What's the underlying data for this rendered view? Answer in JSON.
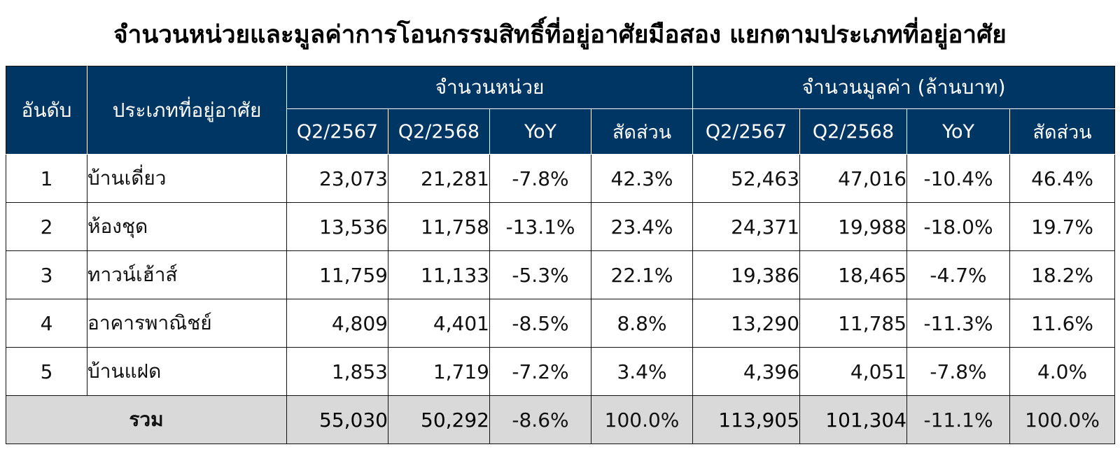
{
  "title": "จำนวนหน่วยและมูลค่าการโอนกรรมสิทธิ์ที่อยู่อาศัยมือสอง แยกตามประเภทที่อยู่อาศัย",
  "chart_data": {
    "type": "table",
    "headers": {
      "rank": "อันดับ",
      "type": "ประเภทที่อยู่อาศัย",
      "units_group": "จำนวนหน่วย",
      "value_group": "จำนวนมูลค่า (ล้านบาท)",
      "sub": [
        "Q2/2567",
        "Q2/2568",
        "YoY",
        "สัดส่วน"
      ]
    },
    "rows": [
      {
        "rank": "1",
        "type": "บ้านเดี่ยว",
        "units": [
          "23,073",
          "21,281",
          "-7.8%",
          "42.3%"
        ],
        "value": [
          "52,463",
          "47,016",
          "-10.4%",
          "46.4%"
        ]
      },
      {
        "rank": "2",
        "type": "ห้องชุด",
        "units": [
          "13,536",
          "11,758",
          "-13.1%",
          "23.4%"
        ],
        "value": [
          "24,371",
          "19,988",
          "-18.0%",
          "19.7%"
        ]
      },
      {
        "rank": "3",
        "type": "ทาวน์เฮ้าส์",
        "units": [
          "11,759",
          "11,133",
          "-5.3%",
          "22.1%"
        ],
        "value": [
          "19,386",
          "18,465",
          "-4.7%",
          "18.2%"
        ]
      },
      {
        "rank": "4",
        "type": "อาคารพาณิชย์",
        "units": [
          "4,809",
          "4,401",
          "-8.5%",
          "8.8%"
        ],
        "value": [
          "13,290",
          "11,785",
          "-11.3%",
          "11.6%"
        ]
      },
      {
        "rank": "5",
        "type": "บ้านแฝด",
        "units": [
          "1,853",
          "1,719",
          "-7.2%",
          "3.4%"
        ],
        "value": [
          "4,396",
          "4,051",
          "-7.8%",
          "4.0%"
        ]
      }
    ],
    "total": {
      "label": "รวม",
      "units": [
        "55,030",
        "50,292",
        "-8.6%",
        "100.0%"
      ],
      "value": [
        "113,905",
        "101,304",
        "-11.1%",
        "100.0%"
      ]
    },
    "colors": {
      "header_bg": "#003664",
      "negative": "#e3201b",
      "total_bg": "#d9d9d9"
    }
  }
}
